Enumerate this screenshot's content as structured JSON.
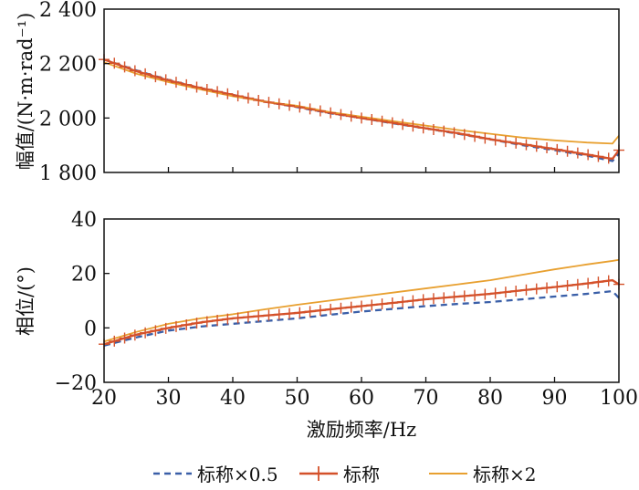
{
  "chart_data": [
    {
      "type": "line",
      "ylabel": "幅值/(N·m·rad⁻¹)",
      "xlim": [
        20,
        100
      ],
      "ylim": [
        1800,
        2400
      ],
      "yticks": [
        1800,
        2000,
        2200,
        2400
      ],
      "ytick_labels": [
        "1 800",
        "2 000",
        "2 200",
        "2 400"
      ],
      "x": [
        20,
        25,
        30,
        35,
        40,
        45,
        50,
        55,
        60,
        65,
        70,
        75,
        80,
        85,
        90,
        95,
        99,
        100
      ],
      "series": [
        {
          "name": "标称×0.5",
          "color": "#3a5fa8",
          "style": "dashed",
          "values": [
            2215,
            2175,
            2140,
            2110,
            2085,
            2060,
            2040,
            2018,
            2000,
            1980,
            1962,
            1942,
            1922,
            1900,
            1882,
            1862,
            1842,
            1870
          ]
        },
        {
          "name": "标称",
          "color": "#d4512a",
          "style": "solid-plus",
          "values": [
            2215,
            2172,
            2138,
            2110,
            2085,
            2060,
            2042,
            2020,
            2000,
            1982,
            1962,
            1944,
            1922,
            1904,
            1886,
            1866,
            1850,
            1882
          ]
        },
        {
          "name": "标称×2",
          "color": "#e8a030",
          "style": "solid",
          "values": [
            2205,
            2163,
            2132,
            2105,
            2080,
            2060,
            2045,
            2022,
            2005,
            1988,
            1972,
            1956,
            1942,
            1928,
            1918,
            1910,
            1906,
            1935
          ]
        }
      ]
    },
    {
      "type": "line",
      "ylabel": "相位/(°)",
      "xlabel": "激励频率/Hz",
      "xlim": [
        20,
        100
      ],
      "ylim": [
        -20,
        40
      ],
      "yticks": [
        -20,
        0,
        20,
        40
      ],
      "ytick_labels": [
        "−20",
        "0",
        "20",
        "40"
      ],
      "xticks": [
        20,
        30,
        40,
        50,
        60,
        70,
        80,
        90,
        100
      ],
      "x": [
        20,
        25,
        30,
        35,
        40,
        45,
        50,
        55,
        60,
        65,
        70,
        75,
        80,
        85,
        90,
        95,
        99,
        100
      ],
      "series": [
        {
          "name": "标称×0.5",
          "color": "#3a5fa8",
          "style": "dashed",
          "values": [
            -6.5,
            -3.5,
            -1,
            0.5,
            1.5,
            2.5,
            3.5,
            4.8,
            6,
            7,
            8,
            8.8,
            9.5,
            10.5,
            11.5,
            12.5,
            13.5,
            11
          ]
        },
        {
          "name": "标称",
          "color": "#d4512a",
          "style": "solid-plus",
          "values": [
            -6,
            -2.5,
            0,
            2,
            3.5,
            4.5,
            5.5,
            6.8,
            8,
            9.2,
            10.5,
            11.5,
            12.5,
            13.8,
            15,
            16.3,
            17.5,
            16
          ]
        },
        {
          "name": "标称×2",
          "color": "#e8a030",
          "style": "solid",
          "values": [
            -5,
            -1.5,
            1.5,
            3.5,
            5,
            6.8,
            8.5,
            10,
            11.5,
            13,
            14.5,
            16,
            17.5,
            19.5,
            21.5,
            23.3,
            24.6,
            25
          ]
        }
      ]
    }
  ],
  "legend": [
    "标称×0.5",
    "标称",
    "标称×2"
  ]
}
